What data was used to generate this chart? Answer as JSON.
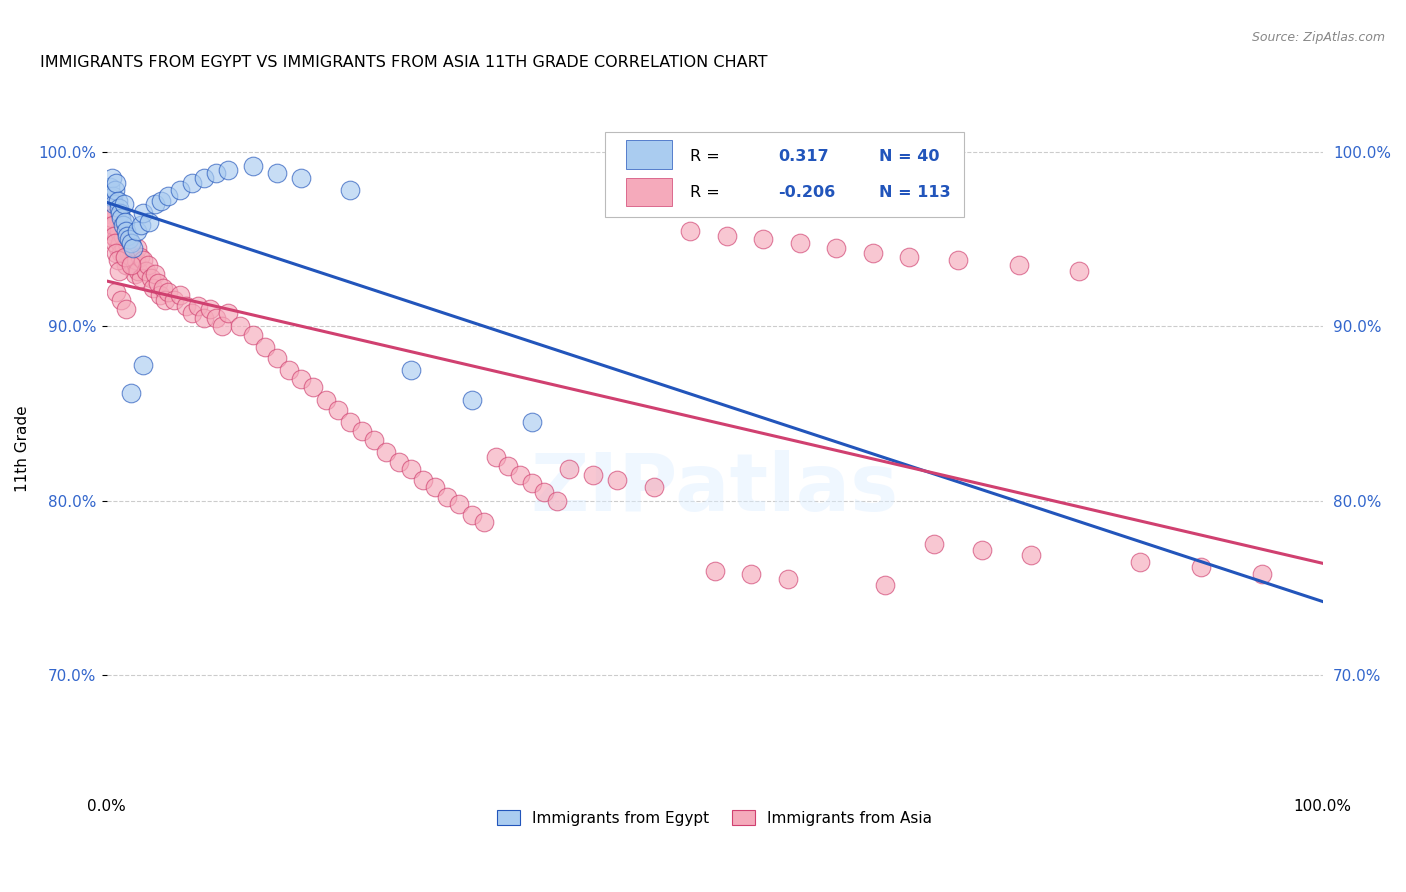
{
  "title": "IMMIGRANTS FROM EGYPT VS IMMIGRANTS FROM ASIA 11TH GRADE CORRELATION CHART",
  "source": "Source: ZipAtlas.com",
  "ylabel": "11th Grade",
  "xlim": [
    0.0,
    1.0
  ],
  "ylim": [
    0.635,
    1.025
  ],
  "yticks": [
    0.7,
    0.8,
    0.9,
    1.0
  ],
  "ytick_labels": [
    "70.0%",
    "80.0%",
    "90.0%",
    "100.0%"
  ],
  "r_egypt": 0.317,
  "n_egypt": 40,
  "r_asia": -0.206,
  "n_asia": 113,
  "color_egypt": "#aaccf0",
  "color_asia": "#f5aabb",
  "line_color_egypt": "#2255bb",
  "line_color_asia": "#d04070",
  "egypt_x": [
    0.002,
    0.003,
    0.004,
    0.005,
    0.006,
    0.007,
    0.008,
    0.009,
    0.01,
    0.011,
    0.012,
    0.013,
    0.014,
    0.015,
    0.016,
    0.017,
    0.018,
    0.02,
    0.022,
    0.025,
    0.028,
    0.03,
    0.035,
    0.04,
    0.045,
    0.05,
    0.06,
    0.07,
    0.08,
    0.09,
    0.1,
    0.12,
    0.14,
    0.16,
    0.2,
    0.25,
    0.3,
    0.35,
    0.03,
    0.02
  ],
  "egypt_y": [
    0.975,
    0.98,
    0.985,
    0.975,
    0.97,
    0.978,
    0.982,
    0.972,
    0.968,
    0.965,
    0.962,
    0.958,
    0.97,
    0.96,
    0.955,
    0.952,
    0.95,
    0.948,
    0.945,
    0.955,
    0.958,
    0.965,
    0.96,
    0.97,
    0.972,
    0.975,
    0.978,
    0.982,
    0.985,
    0.988,
    0.99,
    0.992,
    0.988,
    0.985,
    0.978,
    0.875,
    0.858,
    0.845,
    0.878,
    0.862
  ],
  "asia_x": [
    0.001,
    0.002,
    0.003,
    0.004,
    0.005,
    0.006,
    0.007,
    0.008,
    0.009,
    0.01,
    0.011,
    0.012,
    0.013,
    0.014,
    0.015,
    0.016,
    0.017,
    0.018,
    0.019,
    0.02,
    0.021,
    0.022,
    0.023,
    0.024,
    0.025,
    0.026,
    0.027,
    0.028,
    0.03,
    0.032,
    0.034,
    0.036,
    0.038,
    0.04,
    0.042,
    0.044,
    0.046,
    0.048,
    0.05,
    0.055,
    0.06,
    0.065,
    0.07,
    0.075,
    0.08,
    0.085,
    0.09,
    0.095,
    0.1,
    0.11,
    0.12,
    0.13,
    0.14,
    0.15,
    0.16,
    0.17,
    0.18,
    0.19,
    0.2,
    0.21,
    0.22,
    0.23,
    0.24,
    0.25,
    0.26,
    0.27,
    0.28,
    0.29,
    0.3,
    0.31,
    0.32,
    0.33,
    0.34,
    0.35,
    0.36,
    0.37,
    0.38,
    0.4,
    0.42,
    0.45,
    0.48,
    0.51,
    0.54,
    0.57,
    0.6,
    0.63,
    0.66,
    0.7,
    0.75,
    0.8,
    0.5,
    0.53,
    0.56,
    0.64,
    0.68,
    0.72,
    0.76,
    0.85,
    0.9,
    0.95,
    0.003,
    0.004,
    0.005,
    0.006,
    0.007,
    0.008,
    0.009,
    0.01,
    0.015,
    0.02,
    0.008,
    0.012,
    0.016
  ],
  "asia_y": [
    0.975,
    0.968,
    0.96,
    0.955,
    0.972,
    0.965,
    0.958,
    0.95,
    0.945,
    0.955,
    0.948,
    0.942,
    0.952,
    0.945,
    0.94,
    0.935,
    0.948,
    0.942,
    0.938,
    0.945,
    0.94,
    0.935,
    0.93,
    0.938,
    0.945,
    0.932,
    0.94,
    0.928,
    0.938,
    0.932,
    0.935,
    0.928,
    0.922,
    0.93,
    0.925,
    0.918,
    0.922,
    0.915,
    0.92,
    0.915,
    0.918,
    0.912,
    0.908,
    0.912,
    0.905,
    0.91,
    0.905,
    0.9,
    0.908,
    0.9,
    0.895,
    0.888,
    0.882,
    0.875,
    0.87,
    0.865,
    0.858,
    0.852,
    0.845,
    0.84,
    0.835,
    0.828,
    0.822,
    0.818,
    0.812,
    0.808,
    0.802,
    0.798,
    0.792,
    0.788,
    0.825,
    0.82,
    0.815,
    0.81,
    0.805,
    0.8,
    0.818,
    0.815,
    0.812,
    0.808,
    0.955,
    0.952,
    0.95,
    0.948,
    0.945,
    0.942,
    0.94,
    0.938,
    0.935,
    0.932,
    0.76,
    0.758,
    0.755,
    0.752,
    0.775,
    0.772,
    0.769,
    0.765,
    0.762,
    0.758,
    0.968,
    0.962,
    0.958,
    0.952,
    0.948,
    0.942,
    0.938,
    0.932,
    0.94,
    0.935,
    0.92,
    0.915,
    0.91
  ]
}
